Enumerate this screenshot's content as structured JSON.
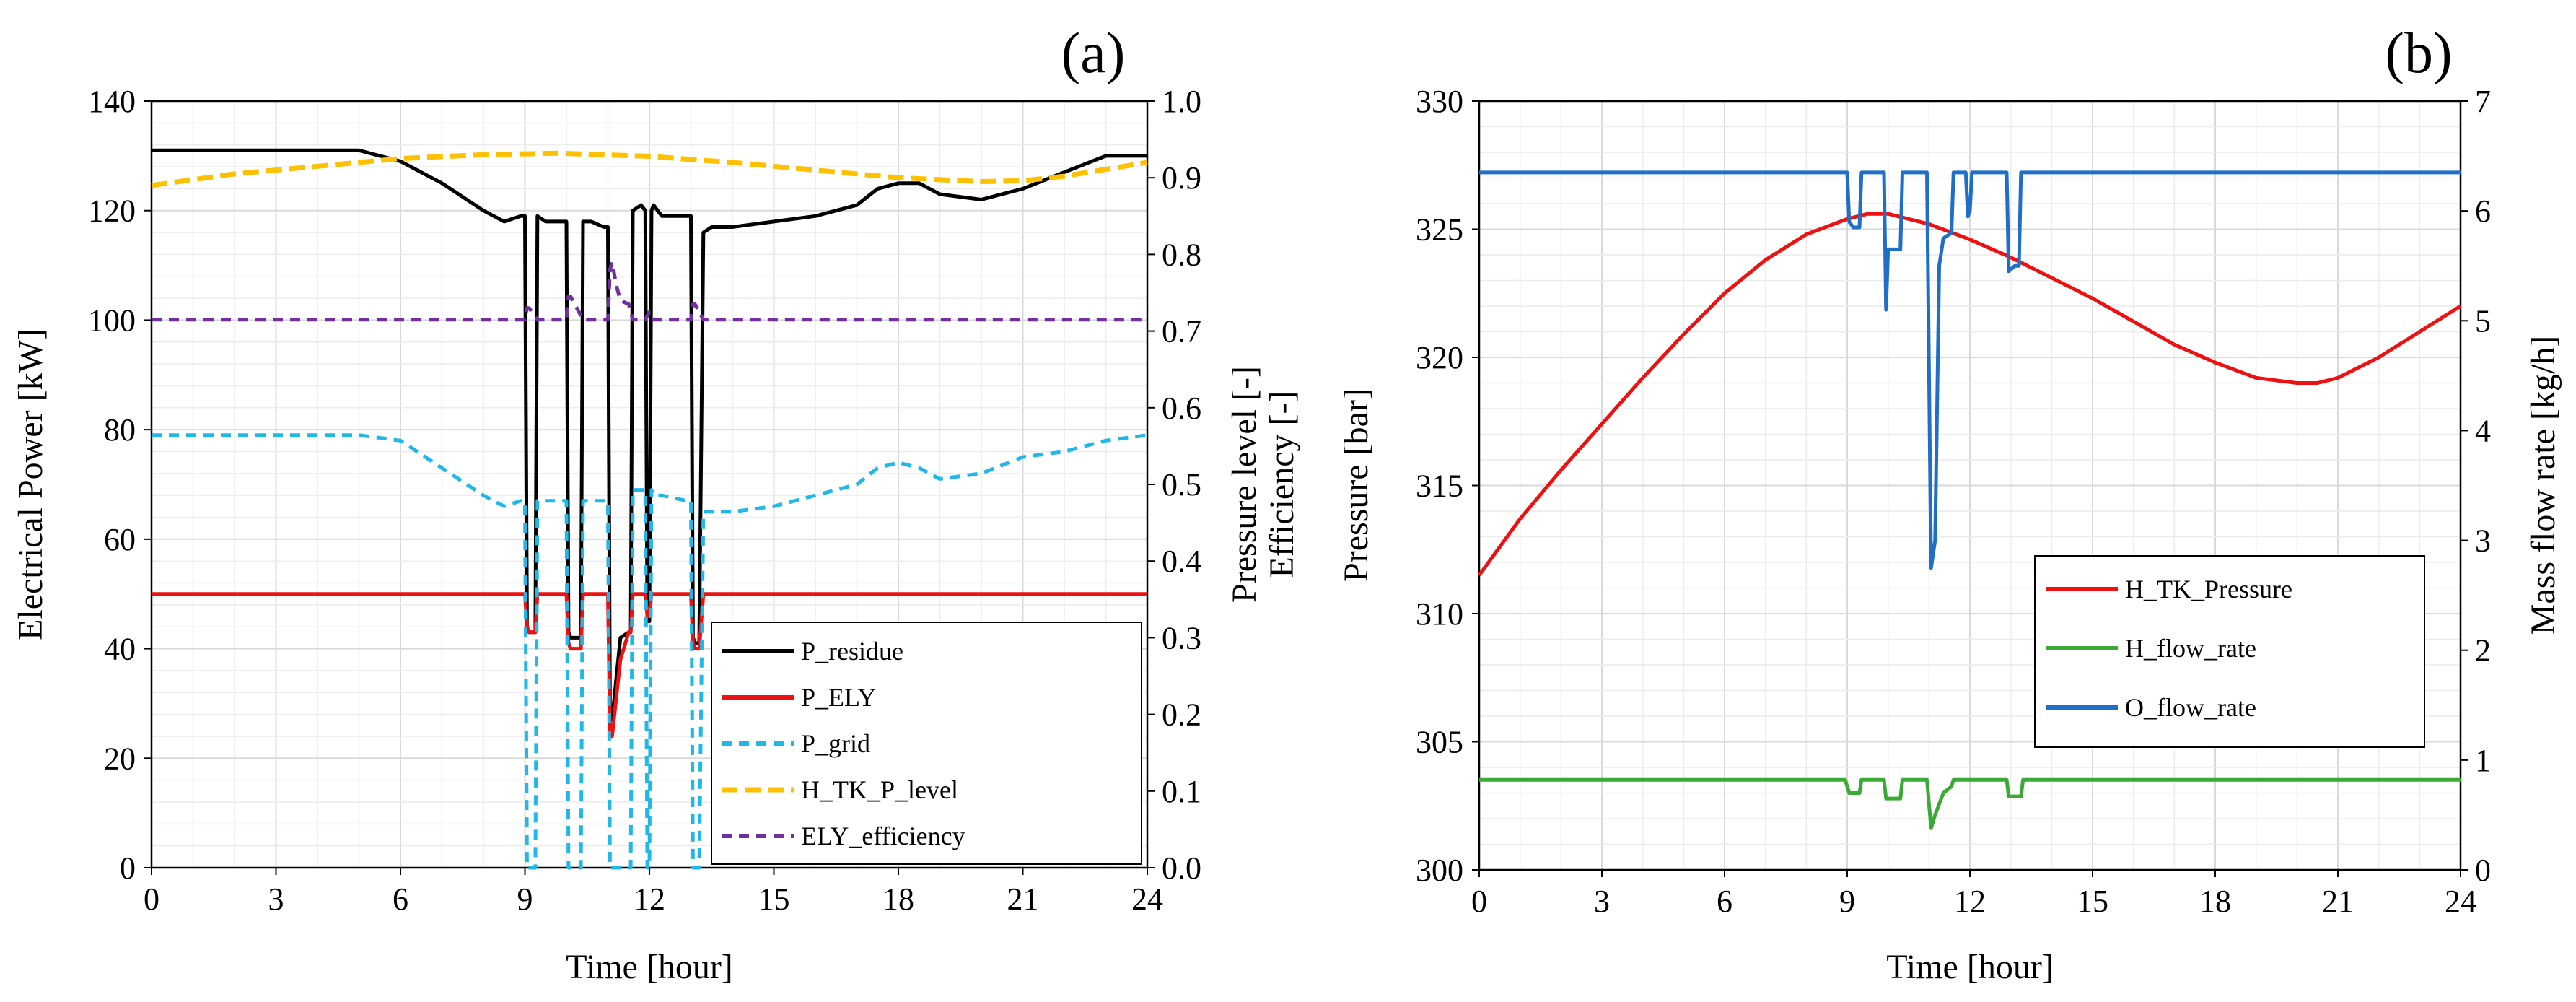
{
  "chart_data": [
    {
      "panel_label": "(a)",
      "type": "line",
      "xlabel": "Time [hour]",
      "ylabel_left": "Electrical Power [kW]",
      "ylabel_right_1": "Pressure level [-]",
      "ylabel_right_2": "Efficiency [-]",
      "xlim": [
        0,
        24
      ],
      "ylim_left": [
        0,
        140
      ],
      "ylim_right": [
        0,
        1.0
      ],
      "x_ticks": [
        "0",
        "3",
        "6",
        "9",
        "12",
        "15",
        "18",
        "21",
        "24"
      ],
      "y_left_ticks": [
        "0",
        "20",
        "40",
        "60",
        "80",
        "100",
        "120",
        "140"
      ],
      "y_right_ticks": [
        "0.0",
        "0.1",
        "0.2",
        "0.3",
        "0.4",
        "0.5",
        "0.6",
        "0.7",
        "0.8",
        "0.9",
        "1.0"
      ],
      "legend": [
        "P_residue",
        "P_ELY",
        "P_grid",
        "H_TK_P_level",
        "ELY_efficiency"
      ],
      "series": [
        {
          "name": "P_residue",
          "axis": "left",
          "color": "#000000",
          "dash": "",
          "x": [
            0,
            5,
            6,
            7,
            8,
            8.5,
            8.9,
            9.0,
            9.05,
            9.1,
            9.2,
            9.25,
            9.3,
            9.5,
            9.9,
            10.0,
            10.05,
            10.1,
            10.3,
            10.35,
            10.4,
            10.6,
            10.9,
            11.0,
            11.05,
            11.1,
            11.3,
            11.5,
            11.55,
            11.6,
            11.8,
            11.9,
            11.95,
            12.0,
            12.05,
            12.1,
            12.2,
            12.3,
            12.9,
            13.0,
            13.05,
            13.1,
            13.2,
            13.3,
            13.5,
            14,
            15,
            16,
            17,
            17.5,
            18,
            18.5,
            19,
            20,
            21,
            22,
            23,
            24
          ],
          "y": [
            131,
            131,
            129,
            125,
            120,
            118,
            119,
            119,
            44,
            43,
            43,
            43,
            119,
            118,
            118,
            118,
            43,
            42,
            42,
            42,
            118,
            118,
            117,
            117,
            28,
            27,
            42,
            43,
            43,
            120,
            121,
            120,
            45,
            45,
            120,
            121,
            120,
            119,
            119,
            119,
            42,
            41,
            41,
            116,
            117,
            117,
            118,
            119,
            121,
            124,
            125,
            125,
            123,
            122,
            124,
            127,
            130,
            130
          ]
        },
        {
          "name": "P_ELY",
          "axis": "left",
          "color": "#ee1111",
          "dash": "",
          "x": [
            0,
            9.0,
            9.05,
            9.1,
            9.2,
            9.25,
            9.3,
            10.0,
            10.05,
            10.1,
            10.3,
            10.35,
            10.4,
            11.0,
            11.05,
            11.1,
            11.3,
            11.5,
            11.55,
            11.6,
            11.9,
            11.95,
            12.0,
            12.05,
            12.1,
            13.0,
            13.05,
            13.1,
            13.2,
            13.3,
            24
          ],
          "y": [
            50,
            50,
            44,
            43,
            43,
            43,
            50,
            50,
            41,
            40,
            40,
            40,
            50,
            50,
            25,
            24,
            38,
            43,
            43,
            50,
            50,
            46,
            46,
            50,
            50,
            50,
            41,
            40,
            40,
            50,
            50
          ]
        },
        {
          "name": "P_grid",
          "axis": "left",
          "color": "#1fb8e8",
          "dash": "14,10",
          "x": [
            0,
            5,
            6,
            7,
            8,
            8.5,
            8.9,
            9.0,
            9.05,
            9.1,
            9.2,
            9.25,
            9.3,
            9.9,
            10.0,
            10.05,
            10.3,
            10.35,
            10.4,
            10.9,
            11.0,
            11.05,
            11.1,
            11.5,
            11.55,
            11.6,
            11.9,
            11.95,
            12.0,
            12.05,
            12.1,
            12.3,
            12.9,
            13.0,
            13.05,
            13.1,
            13.2,
            13.3,
            14,
            15,
            16,
            17,
            17.5,
            18,
            18.5,
            19,
            20,
            21,
            22,
            23,
            24
          ],
          "y": [
            79,
            79,
            78,
            73,
            68,
            66,
            67,
            67,
            0,
            0,
            0,
            0,
            67,
            67,
            67,
            0,
            0,
            0,
            67,
            67,
            67,
            0,
            0,
            0,
            0,
            69,
            69,
            0,
            0,
            69,
            68,
            68,
            67,
            67,
            0,
            0,
            0,
            65,
            65,
            66,
            68,
            70,
            73,
            74,
            73,
            71,
            72,
            75,
            76,
            78,
            79
          ]
        },
        {
          "name": "H_TK_P_level",
          "axis": "right",
          "color": "#ffc000",
          "dash": "22,10",
          "x": [
            0,
            2,
            4,
            6,
            8,
            9.8,
            12,
            14,
            16,
            18,
            20,
            21,
            22,
            24
          ],
          "y": [
            0.89,
            0.905,
            0.915,
            0.925,
            0.93,
            0.932,
            0.928,
            0.92,
            0.91,
            0.9,
            0.895,
            0.896,
            0.902,
            0.92
          ]
        },
        {
          "name": "ELY_efficiency",
          "axis": "right",
          "color": "#7030a0",
          "dash": "14,10",
          "x": [
            0,
            9.0,
            9.05,
            9.1,
            9.3,
            10.0,
            10.05,
            10.1,
            10.4,
            11.0,
            11.05,
            11.1,
            11.2,
            11.3,
            11.5,
            11.6,
            11.9,
            12.0,
            12.05,
            12.1,
            13.0,
            13.05,
            13.1,
            13.3,
            24
          ],
          "y": [
            0.715,
            0.715,
            0.73,
            0.73,
            0.715,
            0.715,
            0.745,
            0.745,
            0.715,
            0.715,
            0.78,
            0.79,
            0.76,
            0.74,
            0.735,
            0.715,
            0.715,
            0.725,
            0.725,
            0.715,
            0.715,
            0.735,
            0.735,
            0.715,
            0.715
          ]
        }
      ]
    },
    {
      "panel_label": "(b)",
      "type": "line",
      "xlabel": "Time [hour]",
      "ylabel_left": "Pressure [bar]",
      "ylabel_right": "Mass flow rate [kg/h]",
      "xlim": [
        0,
        24
      ],
      "ylim_left": [
        300,
        330
      ],
      "ylim_right": [
        0,
        7
      ],
      "x_ticks": [
        "0",
        "3",
        "6",
        "9",
        "12",
        "15",
        "18",
        "21",
        "24"
      ],
      "y_left_ticks": [
        "300",
        "305",
        "310",
        "315",
        "320",
        "325",
        "330"
      ],
      "y_right_ticks": [
        "0",
        "1",
        "2",
        "3",
        "4",
        "5",
        "6",
        "7"
      ],
      "legend": [
        "H_TK_Pressure",
        "H_flow_rate",
        "O_flow_rate"
      ],
      "series": [
        {
          "name": "H_TK_Pressure",
          "axis": "left",
          "color": "#ee1111",
          "dash": "",
          "x": [
            0,
            1,
            2,
            3,
            4,
            5,
            6,
            7,
            8,
            9,
            9.5,
            10,
            11,
            12,
            13,
            14,
            15,
            16,
            17,
            18,
            19,
            20,
            20.5,
            21,
            22,
            23,
            24
          ],
          "y": [
            311.5,
            313.7,
            315.6,
            317.4,
            319.2,
            320.9,
            322.5,
            323.8,
            324.8,
            325.4,
            325.6,
            325.6,
            325.2,
            324.6,
            323.9,
            323.1,
            322.3,
            321.4,
            320.5,
            319.8,
            319.2,
            319.0,
            319.0,
            319.2,
            320.0,
            321.0,
            322.0
          ]
        },
        {
          "name": "H_flow_rate",
          "axis": "right",
          "color": "#3aaa35",
          "dash": "",
          "x": [
            0,
            8.95,
            9.05,
            9.3,
            9.35,
            9.9,
            9.95,
            10.3,
            10.35,
            10.95,
            11.05,
            11.15,
            11.35,
            11.55,
            11.6,
            12.9,
            12.95,
            13.25,
            13.3,
            24
          ],
          "y": [
            0.82,
            0.82,
            0.7,
            0.7,
            0.82,
            0.82,
            0.65,
            0.65,
            0.82,
            0.82,
            0.38,
            0.5,
            0.7,
            0.76,
            0.82,
            0.82,
            0.67,
            0.67,
            0.82,
            0.82
          ]
        },
        {
          "name": "O_flow_rate",
          "axis": "right",
          "color": "#1f6fc8",
          "dash": "",
          "x": [
            0,
            9.0,
            9.05,
            9.15,
            9.3,
            9.35,
            9.9,
            9.95,
            10.0,
            10.05,
            10.3,
            10.35,
            10.95,
            11.05,
            11.15,
            11.25,
            11.35,
            11.55,
            11.6,
            11.9,
            11.95,
            12.0,
            12.05,
            12.9,
            12.95,
            13.1,
            13.2,
            13.25,
            24
          ],
          "y": [
            6.35,
            6.35,
            5.9,
            5.85,
            5.85,
            6.35,
            6.35,
            5.1,
            5.65,
            5.65,
            5.65,
            6.35,
            6.35,
            2.75,
            3.0,
            5.5,
            5.75,
            5.8,
            6.35,
            6.35,
            5.95,
            6.0,
            6.35,
            6.35,
            5.45,
            5.5,
            5.5,
            6.35,
            6.35
          ]
        }
      ]
    }
  ]
}
